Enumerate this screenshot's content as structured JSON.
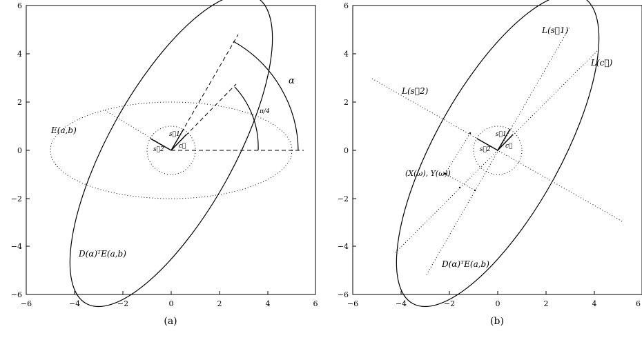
{
  "panels": [
    {
      "id": "a",
      "caption": "(a)",
      "x_ticks": [
        "−6",
        "−4",
        "−2",
        "0",
        "2",
        "4",
        "6"
      ],
      "y_ticks": [
        "6",
        "4",
        "2",
        "0",
        "−2",
        "−4",
        "−6"
      ],
      "labels": {
        "ellipse_E": "E(a,b)",
        "rotated": "D(α)ᵀE(a,b)",
        "alpha": "α",
        "pi4": "π/4",
        "s1": "s⃗1",
        "s2": "s⃗2",
        "c": "c⃗"
      }
    },
    {
      "id": "b",
      "caption": "(b)",
      "x_ticks": [
        "−6",
        "−4",
        "−2",
        "0",
        "2",
        "4",
        "6"
      ],
      "y_ticks": [
        "6",
        "4",
        "2",
        "0",
        "−2",
        "−4",
        "−6"
      ],
      "labels": {
        "L_s1": "L(s⃗1)",
        "L_c": "L(c⃗)",
        "L_s2": "L(s⃗2)",
        "point": "(X(ω), Y(ω))",
        "rotated": "D(α)ᵀE(a,b)",
        "s1": "s⃗1",
        "s2": "s⃗2",
        "c": "c⃗"
      }
    }
  ]
}
